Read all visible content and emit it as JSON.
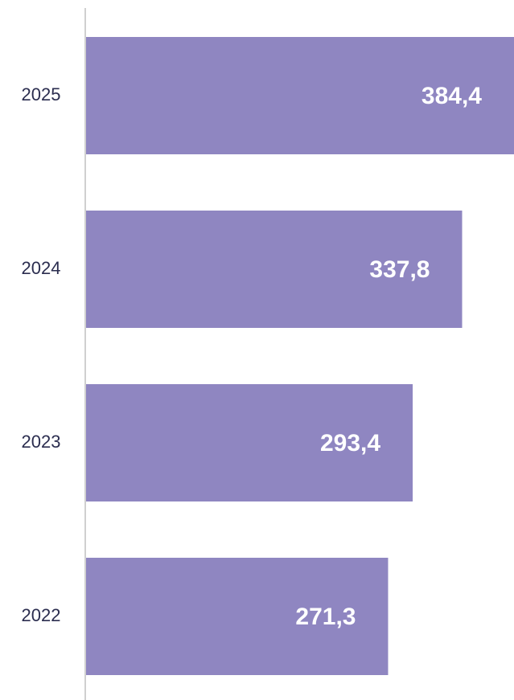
{
  "chart_data": {
    "type": "bar",
    "orientation": "horizontal",
    "categories": [
      "2025",
      "2024",
      "2023",
      "2022"
    ],
    "values": [
      384.4,
      337.8,
      293.4,
      271.3
    ],
    "value_labels": [
      "384,4",
      "337,8",
      "293,4",
      "271,3"
    ],
    "color": "#8f86c1",
    "xlim": [
      0,
      384.4
    ]
  }
}
